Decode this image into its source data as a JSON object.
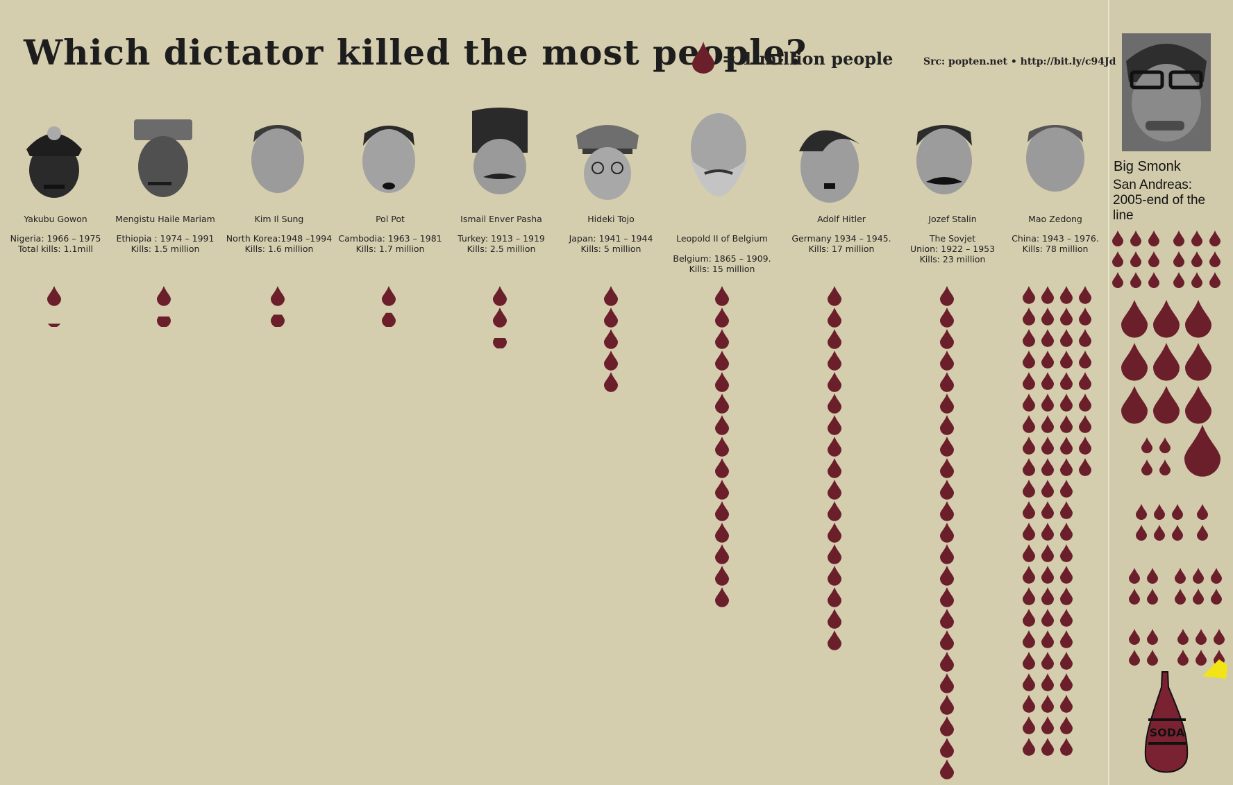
{
  "title": "Which dictator killed the most people?",
  "legend": {
    "label": "= 1 million people",
    "color": "#6a1f2b"
  },
  "source": "Src: popten.net • http://bit.ly/c94Jd",
  "chart_data": {
    "type": "pictograph",
    "unit": "1 million people",
    "series": [
      {
        "name": "Yakubu Gowon",
        "line1": "Nigeria: 1966 – 1975",
        "line2": "Total kills: 1.1mill",
        "value": 1.1
      },
      {
        "name": "Mengistu Haile Mariam",
        "line1": "Ethiopia : 1974 – 1991",
        "line2": "Kills: 1.5 million",
        "value": 1.5
      },
      {
        "name": "Kim Il Sung",
        "line1": "North Korea:1948 –1994",
        "line2": "Kills: 1.6 million",
        "value": 1.6
      },
      {
        "name": "Pol Pot",
        "line1": "Cambodia: 1963 – 1981",
        "line2": "Kills: 1.7 million",
        "value": 1.7
      },
      {
        "name": "Ismail Enver Pasha",
        "line1": "Turkey: 1913 – 1919",
        "line2": "Kills: 2.5 million",
        "value": 2.5
      },
      {
        "name": "Hideki Tojo",
        "line1": "Japan: 1941 – 1944",
        "line2": "Kills: 5 million",
        "value": 5
      },
      {
        "name": "Leopold II of Belgium",
        "line1": "Belgium: 1865 – 1909.",
        "line2": "Kills: 15 million",
        "value": 15
      },
      {
        "name": "Adolf Hitler",
        "line1": "Germany 1934 – 1945.",
        "line2": "Kills: 17 million",
        "value": 17
      },
      {
        "name": "Jozef Stalin",
        "line1": "The Sovjet",
        "line1b": "Union: 1922 – 1953",
        "line2": "Kills: 23 million",
        "value": 23
      },
      {
        "name": "Mao Zedong",
        "line1": "China: 1943 – 1976.",
        "line2": "Kills: 78 million",
        "value": 78
      }
    ]
  },
  "parody": {
    "name": "Big Smonk",
    "line1": "San Andreas:",
    "line2": "2005-end of the",
    "line3": "line",
    "bottle_label": "SODA"
  }
}
